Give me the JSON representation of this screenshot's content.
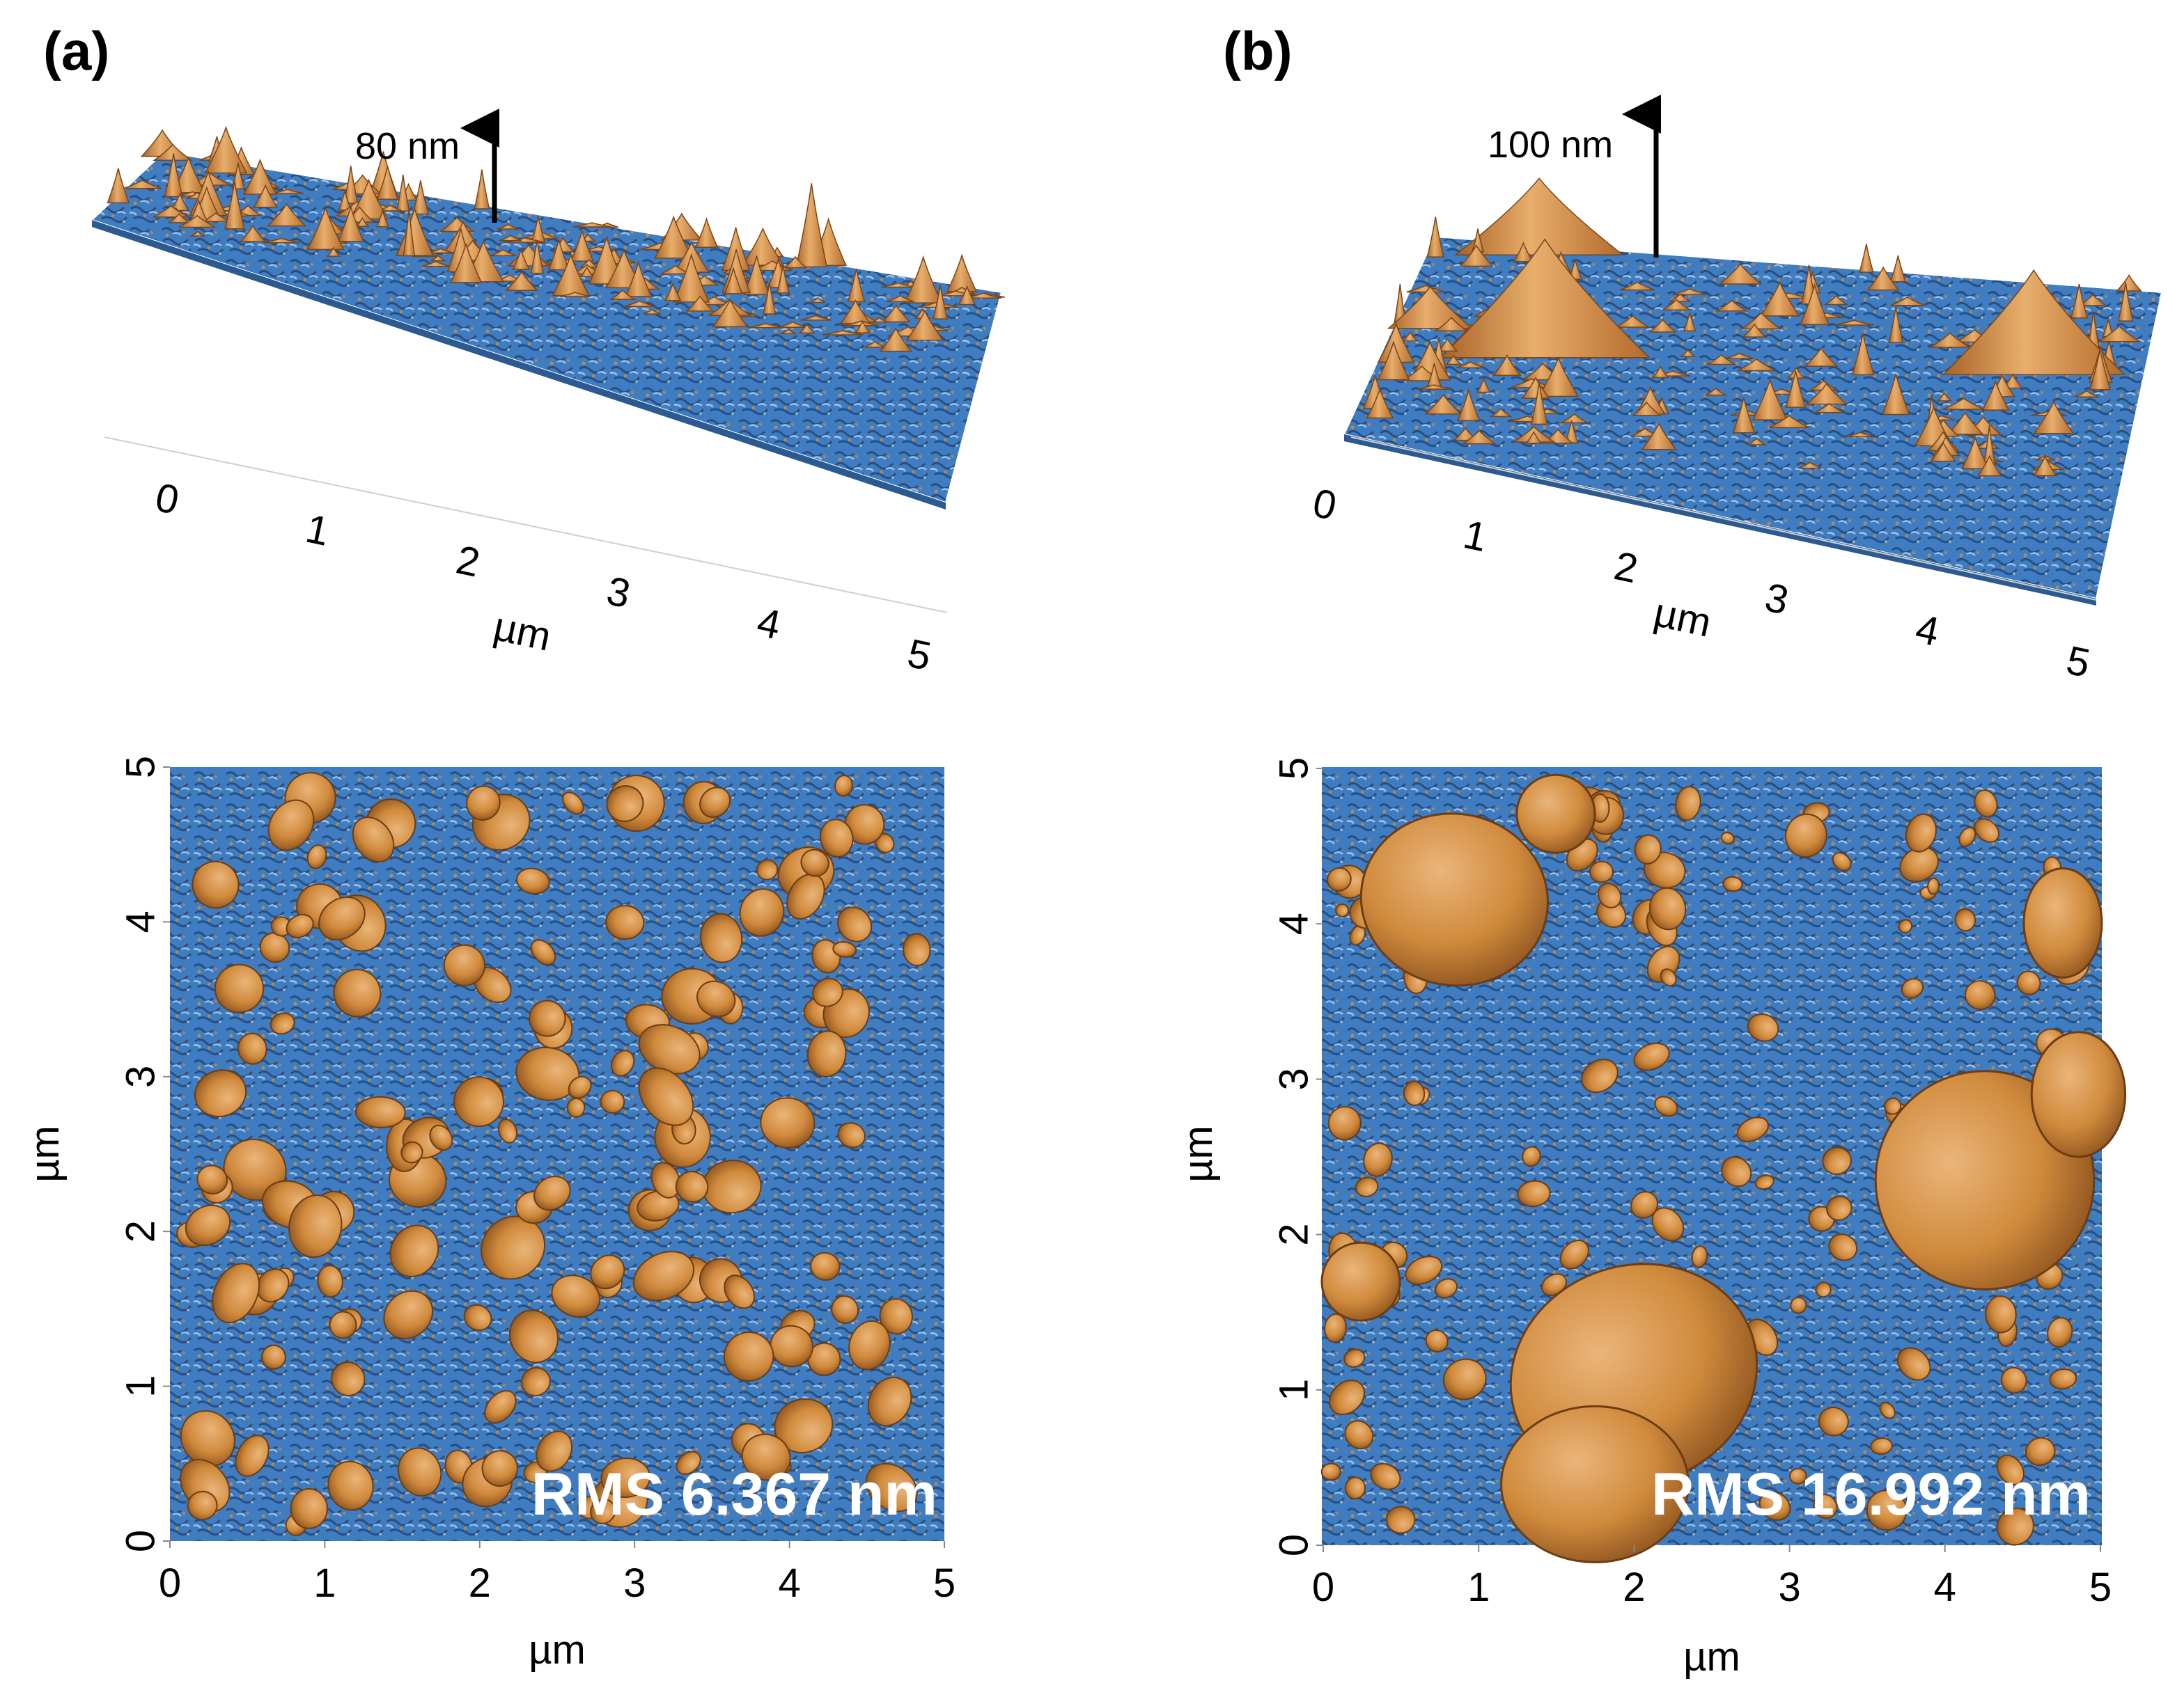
{
  "panels": [
    {
      "letter": "(a)",
      "height_label": "80 nm",
      "rms_label": "RMS 6.367 nm",
      "x_ticks": [
        "0",
        "1",
        "2",
        "3",
        "4",
        "5"
      ],
      "y_ticks": [
        "0",
        "1",
        "2",
        "3",
        "4",
        "5"
      ],
      "axis_unit": "µm",
      "grain_density": "fine"
    },
    {
      "letter": "(b)",
      "height_label": "100 nm",
      "rms_label": "RMS 16.992 nm",
      "x_ticks": [
        "0",
        "1",
        "2",
        "3",
        "4",
        "5"
      ],
      "y_ticks": [
        "0",
        "1",
        "2",
        "3",
        "4",
        "5"
      ],
      "axis_unit": "µm",
      "grain_density": "coarse"
    }
  ],
  "colors": {
    "substrate": "#3f7cc0",
    "substrate_dark": "#1d3f6e",
    "substrate_light": "#9fc2e4",
    "grain": "#d08a3c",
    "grain_light": "#eab57a",
    "grain_dark": "#8f5520"
  }
}
